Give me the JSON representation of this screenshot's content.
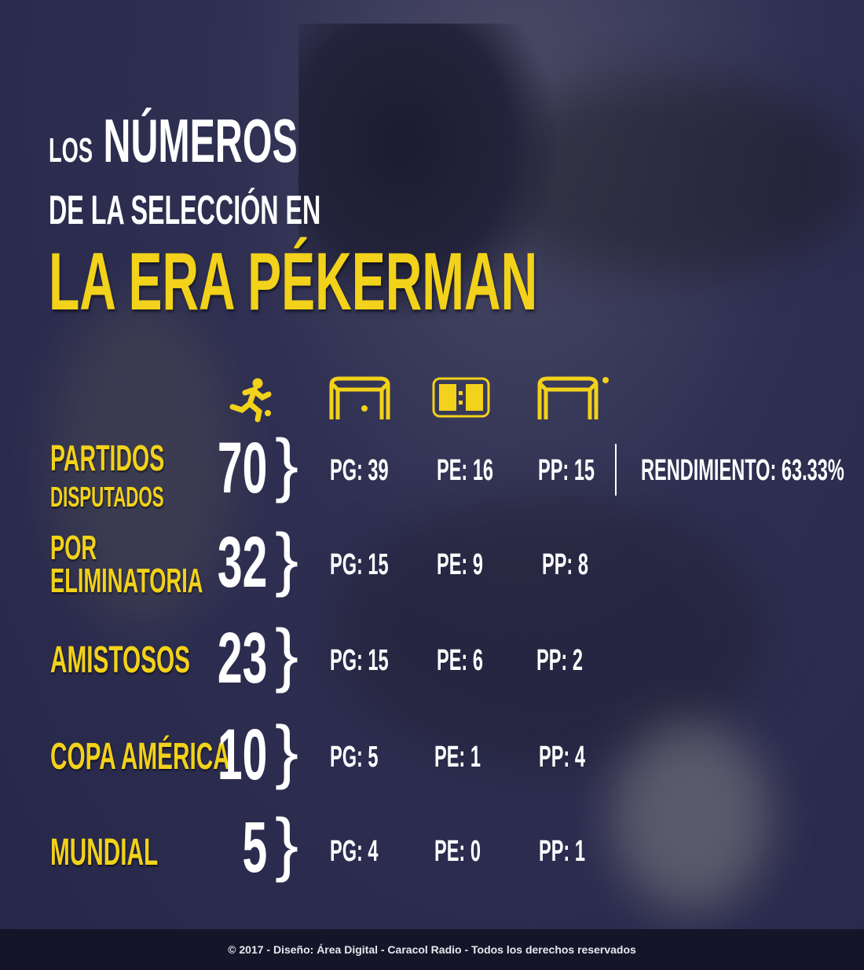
{
  "title": {
    "line1_small": "LOS",
    "line1_big": "NÚMEROS",
    "line2": "DE LA SELECCIÓN EN",
    "line3": "LA ERA PÉKERMAN"
  },
  "accent_color": "#f2d21a",
  "icons": [
    "running-player-icon",
    "goal-won-icon",
    "scoreboard-draw-icon",
    "goal-lost-icon"
  ],
  "rows": [
    {
      "label1": "PARTIDOS",
      "label2": "DISPUTADOS",
      "total": "70",
      "pg": "PG: 39",
      "pe": "PE: 16",
      "pp": "PP: 15",
      "extra": "RENDIMIENTO: 63.33%"
    },
    {
      "label1": "POR",
      "label2": "ELIMINATORIA",
      "total": "32",
      "pg": "PG: 15",
      "pe": "PE: 9",
      "pp": "PP: 8"
    },
    {
      "label1": "AMISTOSOS",
      "total": "23",
      "pg": "PG: 15",
      "pe": "PE: 6",
      "pp": "PP: 2"
    },
    {
      "label1": "COPA AMÉRICA",
      "total": "10",
      "pg": "PG: 5",
      "pe": "PE: 1",
      "pp": "PP: 4"
    },
    {
      "label1": "MUNDIAL",
      "total": "5",
      "pg": "PG: 4",
      "pe": "PE: 0",
      "pp": "PP: 1"
    }
  ],
  "footer": "© 2017 - Diseño: Área Digital - Caracol Radio - Todos los derechos reservados"
}
